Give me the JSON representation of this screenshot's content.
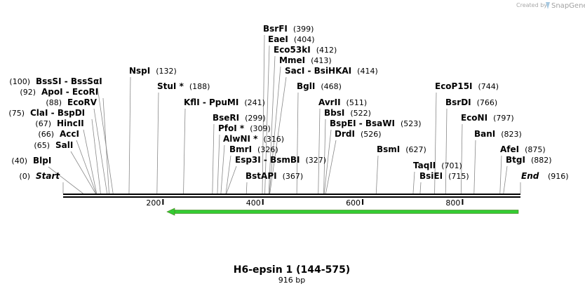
{
  "branding": {
    "created_by": "Created by",
    "app": "SnapGene",
    "logo_icon": "snapgene-logo-icon"
  },
  "construct": {
    "name": "H6-epsin 1 (144-575)",
    "size_label": "916 bp",
    "length": 916
  },
  "colors": {
    "feature": "#33cc33",
    "feature_border": "#4a7c1e",
    "line": "#888888",
    "axis": "#000000"
  },
  "ruler_ticks": [
    "200",
    "400",
    "600",
    "800"
  ],
  "ends": {
    "start": {
      "name": "Start",
      "num": "(0)"
    },
    "end": {
      "name": "End",
      "num": "(916)"
    }
  },
  "sites": [
    {
      "name": "BlpI",
      "num": "(40)"
    },
    {
      "name": "SalI",
      "num": "(65)"
    },
    {
      "name": "AccI",
      "num": "(66)"
    },
    {
      "name": "HincII",
      "num": "(67)"
    },
    {
      "name": "ClaI  -  BspDI",
      "num": "(75)"
    },
    {
      "name": "EcoRV",
      "num": "(88)"
    },
    {
      "name": "ApoI  -  EcoRI",
      "num": "(92)"
    },
    {
      "name": "BssSI  -  BssSαI",
      "num": "(100)"
    },
    {
      "name": "NspI",
      "num": "(132)"
    },
    {
      "name": "StuI *",
      "num": "(188)"
    },
    {
      "name": "KflI  -  PpuMI",
      "num": "(241)"
    },
    {
      "name": "BseRI",
      "num": "(299)"
    },
    {
      "name": "PfoI *",
      "num": "(309)"
    },
    {
      "name": "AlwNI *",
      "num": "(316)"
    },
    {
      "name": "BmrI",
      "num": "(326)"
    },
    {
      "name": "Esp3I  -  BsmBI",
      "num": "(327)"
    },
    {
      "name": "BstAPI",
      "num": "(367)"
    },
    {
      "name": "BsrFI",
      "num": "(399)"
    },
    {
      "name": "EaeI",
      "num": "(404)"
    },
    {
      "name": "Eco53kI",
      "num": "(412)"
    },
    {
      "name": "MmeI",
      "num": "(413)"
    },
    {
      "name": "SacI  -  BsiHKAI",
      "num": "(414)"
    },
    {
      "name": "BglI",
      "num": "(468)"
    },
    {
      "name": "AvrII",
      "num": "(511)"
    },
    {
      "name": "BbsI",
      "num": "(522)"
    },
    {
      "name": "BspEI  -  BsaWI",
      "num": "(523)"
    },
    {
      "name": "DrdI",
      "num": "(526)"
    },
    {
      "name": "BsmI",
      "num": "(627)"
    },
    {
      "name": "TaqII",
      "num": "(701)"
    },
    {
      "name": "BsiEI",
      "num": "(715)"
    },
    {
      "name": "EcoP15I",
      "num": "(744)"
    },
    {
      "name": "BsrDI",
      "num": "(766)"
    },
    {
      "name": "EcoNI",
      "num": "(797)"
    },
    {
      "name": "BanI",
      "num": "(823)"
    },
    {
      "name": "AfeI",
      "num": "(875)"
    },
    {
      "name": "BtgI",
      "num": "(882)"
    }
  ]
}
